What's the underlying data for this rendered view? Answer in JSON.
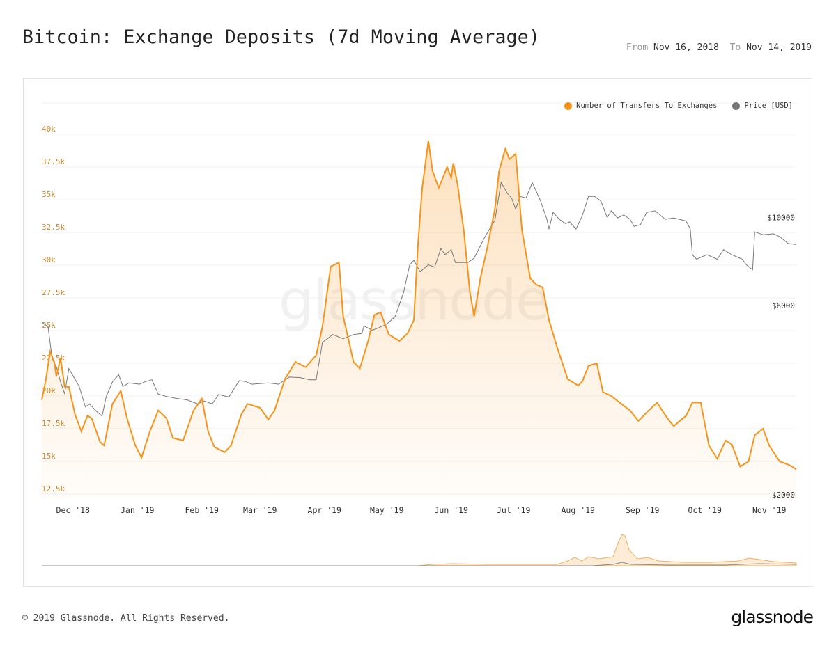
{
  "header": {
    "title": "Bitcoin: Exchange Deposits (7d Moving Average)",
    "from_label": "From",
    "from_value": "Nov 16, 2018",
    "to_label": "To",
    "to_value": "Nov 14, 2019"
  },
  "watermark": "glassnode",
  "footer": {
    "copyright": "© 2019 Glassnode. All Rights Reserved.",
    "logo": "glassnode"
  },
  "chart_data": {
    "type": "line",
    "title": "Bitcoin: Exchange Deposits (7d Moving Average)",
    "xlim": [
      "2018-11-16",
      "2019-11-14"
    ],
    "x_ticks": [
      {
        "date": "2018-12-01",
        "label": "Dec '18"
      },
      {
        "date": "2019-01-01",
        "label": "Jan '19"
      },
      {
        "date": "2019-02-01",
        "label": "Feb '19"
      },
      {
        "date": "2019-03-01",
        "label": "Mar '19"
      },
      {
        "date": "2019-04-01",
        "label": "Apr '19"
      },
      {
        "date": "2019-05-01",
        "label": "May '19"
      },
      {
        "date": "2019-06-01",
        "label": "Jun '19"
      },
      {
        "date": "2019-07-01",
        "label": "Jul '19"
      },
      {
        "date": "2019-08-01",
        "label": "Aug '19"
      },
      {
        "date": "2019-09-01",
        "label": "Sep '19"
      },
      {
        "date": "2019-10-01",
        "label": "Oct '19"
      },
      {
        "date": "2019-11-01",
        "label": "Nov '19"
      }
    ],
    "y_left": {
      "ylim": [
        12500,
        40000
      ],
      "scale": "linear",
      "ticks": [
        {
          "value": 40000,
          "label": "40k"
        },
        {
          "value": 37500,
          "label": "37.5k"
        },
        {
          "value": 35000,
          "label": "35k"
        },
        {
          "value": 32500,
          "label": "32.5k"
        },
        {
          "value": 30000,
          "label": "30k"
        },
        {
          "value": 27500,
          "label": "27.5k"
        },
        {
          "value": 25000,
          "label": "25k"
        },
        {
          "value": 22500,
          "label": "22.5k"
        },
        {
          "value": 20000,
          "label": "20k"
        },
        {
          "value": 17500,
          "label": "17.5k"
        },
        {
          "value": 15000,
          "label": "15k"
        },
        {
          "value": 12500,
          "label": "12.5k"
        }
      ],
      "color": "#c98a2e"
    },
    "y_right": {
      "scale": "log",
      "ticks": [
        {
          "value": 10000,
          "label": "$10000"
        },
        {
          "value": 6000,
          "label": "$6000"
        },
        {
          "value": 2000,
          "label": "$2000"
        }
      ]
    },
    "grid": true,
    "legend_position": "top-right",
    "series": [
      {
        "name": "Number of Transfers To Exchanges",
        "color": "#f7931a",
        "area": true,
        "axis": "left",
        "dates": [
          "2018-11-16",
          "2018-11-18",
          "2018-11-20",
          "2018-11-22",
          "2018-11-23",
          "2018-11-25",
          "2018-11-27",
          "2018-11-29",
          "2018-12-02",
          "2018-12-05",
          "2018-12-08",
          "2018-12-10",
          "2018-12-14",
          "2018-12-16",
          "2018-12-20",
          "2018-12-24",
          "2018-12-27",
          "2018-12-31",
          "2019-01-03",
          "2019-01-07",
          "2019-01-11",
          "2019-01-15",
          "2019-01-18",
          "2019-01-23",
          "2019-01-28",
          "2019-02-01",
          "2019-02-04",
          "2019-02-07",
          "2019-02-12",
          "2019-02-15",
          "2019-02-20",
          "2019-02-23",
          "2019-03-01",
          "2019-03-05",
          "2019-03-08",
          "2019-03-13",
          "2019-03-18",
          "2019-03-23",
          "2019-03-28",
          "2019-03-31",
          "2019-04-04",
          "2019-04-08",
          "2019-04-10",
          "2019-04-15",
          "2019-04-18",
          "2019-04-22",
          "2019-04-25",
          "2019-04-28",
          "2019-05-02",
          "2019-05-07",
          "2019-05-11",
          "2019-05-14",
          "2019-05-16",
          "2019-05-18",
          "2019-05-21",
          "2019-05-23",
          "2019-05-26",
          "2019-05-30",
          "2019-06-01",
          "2019-06-02",
          "2019-06-04",
          "2019-06-07",
          "2019-06-10",
          "2019-06-12",
          "2019-06-15",
          "2019-06-18",
          "2019-06-22",
          "2019-06-24",
          "2019-06-27",
          "2019-06-29",
          "2019-07-02",
          "2019-07-05",
          "2019-07-09",
          "2019-07-12",
          "2019-07-15",
          "2019-07-18",
          "2019-07-22",
          "2019-07-27",
          "2019-08-01",
          "2019-08-03",
          "2019-08-06",
          "2019-08-10",
          "2019-08-13",
          "2019-08-17",
          "2019-08-21",
          "2019-08-26",
          "2019-08-30",
          "2019-09-04",
          "2019-09-08",
          "2019-09-13",
          "2019-09-16",
          "2019-09-22",
          "2019-09-25",
          "2019-09-29",
          "2019-10-03",
          "2019-10-07",
          "2019-10-11",
          "2019-10-14",
          "2019-10-18",
          "2019-10-22",
          "2019-10-25",
          "2019-10-29",
          "2019-11-01",
          "2019-11-06",
          "2019-11-11",
          "2019-11-14"
        ],
        "values": [
          19700,
          21300,
          23400,
          22600,
          21500,
          22900,
          20700,
          20700,
          18600,
          17300,
          18500,
          18300,
          16500,
          16200,
          19400,
          20400,
          18300,
          16200,
          15300,
          17300,
          18900,
          18300,
          16800,
          16600,
          18900,
          19800,
          17300,
          16100,
          15700,
          16200,
          18600,
          19400,
          19100,
          18200,
          18900,
          21300,
          22600,
          22200,
          23100,
          25300,
          29900,
          30200,
          26100,
          22600,
          22100,
          24200,
          26200,
          26400,
          24700,
          24200,
          24800,
          25800,
          31600,
          35900,
          39500,
          37200,
          35900,
          37500,
          36700,
          37800,
          36200,
          32700,
          27900,
          26100,
          29000,
          31100,
          34300,
          37200,
          38900,
          38100,
          38500,
          32700,
          29000,
          28500,
          28300,
          25800,
          23700,
          21300,
          20800,
          21100,
          22300,
          22500,
          20300,
          20000,
          19500,
          18900,
          18100,
          18900,
          19500,
          18300,
          17700,
          18500,
          19500,
          19500,
          16200,
          15200,
          16600,
          16300,
          14600,
          15000,
          17000,
          17500,
          16200,
          15000,
          14700,
          14400
        ]
      },
      {
        "name": "Price [USD]",
        "color": "#777777",
        "axis": "right",
        "dates": [
          "2018-11-16",
          "2018-11-19",
          "2018-11-21",
          "2018-11-23",
          "2018-11-25",
          "2018-11-27",
          "2018-11-29",
          "2018-12-01",
          "2018-12-04",
          "2018-12-07",
          "2018-12-09",
          "2018-12-12",
          "2018-12-15",
          "2018-12-17",
          "2018-12-20",
          "2018-12-23",
          "2018-12-25",
          "2018-12-28",
          "2019-01-02",
          "2019-01-05",
          "2019-01-08",
          "2019-01-11",
          "2019-01-15",
          "2019-01-20",
          "2019-01-25",
          "2019-01-30",
          "2019-02-02",
          "2019-02-06",
          "2019-02-09",
          "2019-02-14",
          "2019-02-19",
          "2019-02-22",
          "2019-02-25",
          "2019-03-05",
          "2019-03-10",
          "2019-03-15",
          "2019-03-20",
          "2019-03-25",
          "2019-03-28",
          "2019-03-31",
          "2019-04-05",
          "2019-04-10",
          "2019-04-15",
          "2019-04-19",
          "2019-04-20",
          "2019-04-24",
          "2019-04-27",
          "2019-05-01",
          "2019-05-05",
          "2019-05-09",
          "2019-05-12",
          "2019-05-14",
          "2019-05-17",
          "2019-05-21",
          "2019-05-24",
          "2019-05-27",
          "2019-05-29",
          "2019-06-01",
          "2019-06-03",
          "2019-06-05",
          "2019-06-09",
          "2019-06-12",
          "2019-06-17",
          "2019-06-22",
          "2019-06-25",
          "2019-06-28",
          "2019-06-30",
          "2019-07-02",
          "2019-07-04",
          "2019-07-07",
          "2019-07-10",
          "2019-07-12",
          "2019-07-14",
          "2019-07-17",
          "2019-07-18",
          "2019-07-20",
          "2019-07-23",
          "2019-07-26",
          "2019-07-28",
          "2019-07-31",
          "2019-08-03",
          "2019-08-06",
          "2019-08-09",
          "2019-08-12",
          "2019-08-15",
          "2019-08-17",
          "2019-08-20",
          "2019-08-23",
          "2019-08-26",
          "2019-08-28",
          "2019-08-31",
          "2019-09-03",
          "2019-09-07",
          "2019-09-12",
          "2019-09-16",
          "2019-09-22",
          "2019-09-24",
          "2019-09-25",
          "2019-09-27",
          "2019-10-02",
          "2019-10-07",
          "2019-10-10",
          "2019-10-14",
          "2019-10-19",
          "2019-10-21",
          "2019-10-24",
          "2019-10-25",
          "2019-10-29",
          "2019-11-03",
          "2019-11-06",
          "2019-11-10",
          "2019-11-14"
        ],
        "values": [
          5450,
          5300,
          4400,
          4200,
          3850,
          3600,
          4160,
          3990,
          3750,
          3330,
          3390,
          3260,
          3160,
          3540,
          3850,
          4020,
          3750,
          3830,
          3800,
          3860,
          3900,
          3590,
          3540,
          3500,
          3470,
          3390,
          3450,
          3390,
          3580,
          3530,
          3880,
          3860,
          3800,
          3830,
          3800,
          3960,
          3950,
          3900,
          3900,
          4840,
          5070,
          4950,
          5070,
          5100,
          5330,
          5200,
          5270,
          5390,
          5630,
          6450,
          7600,
          7800,
          7300,
          7600,
          7500,
          8350,
          8060,
          8300,
          7700,
          7700,
          7700,
          7900,
          8900,
          9850,
          12270,
          11500,
          11200,
          10500,
          11300,
          11200,
          12250,
          11600,
          11000,
          9900,
          9350,
          10300,
          9900,
          9650,
          9750,
          9350,
          10100,
          11300,
          11300,
          11000,
          10000,
          10400,
          9980,
          10150,
          9900,
          9500,
          9600,
          10300,
          10400,
          9900,
          9980,
          9800,
          9350,
          8060,
          7850,
          8060,
          7850,
          8300,
          8060,
          7850,
          7600,
          7380,
          9200,
          9050,
          9100,
          8950,
          8600,
          8550
        ]
      }
    ]
  }
}
